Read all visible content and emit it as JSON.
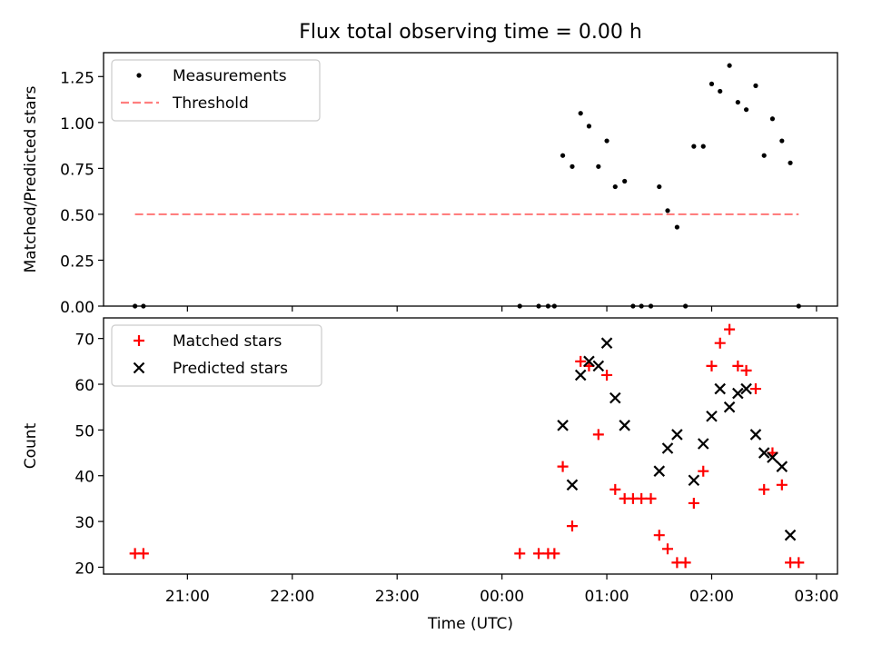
{
  "title": "Flux total observing time = 0.00 h",
  "colors": {
    "measurement": "#000000",
    "threshold": "#ff7f7f",
    "matched": "#ff0000",
    "predicted": "#000000"
  },
  "chart_data": [
    {
      "type": "scatter",
      "panel": "top",
      "ylabel": "Matched/Predicted stars",
      "xlim": [
        20.2,
        27.2
      ],
      "ylim": [
        0,
        1.38
      ],
      "xticks": [
        21,
        22,
        23,
        24,
        25,
        26,
        27
      ],
      "yticks": [
        0,
        0.25,
        0.5,
        0.75,
        1.0,
        1.25
      ],
      "ytick_labels": [
        "0.00",
        "0.25",
        "0.50",
        "0.75",
        "1.00",
        "1.25"
      ],
      "legend": {
        "position": "top-left",
        "entries": [
          "Measurements",
          "Threshold"
        ]
      },
      "series": [
        {
          "name": "Measurements",
          "marker": "dot",
          "x": [
            20.5,
            20.58,
            24.17,
            24.35,
            24.44,
            24.5,
            24.58,
            24.67,
            24.75,
            24.83,
            24.92,
            25.0,
            25.08,
            25.17,
            25.25,
            25.33,
            25.42,
            25.5,
            25.58,
            25.67,
            25.75,
            25.83,
            25.92,
            26.0,
            26.08,
            26.17,
            26.25,
            26.33,
            26.42,
            26.5,
            26.58,
            26.67,
            26.75,
            26.83
          ],
          "y": [
            0,
            0,
            0,
            0,
            0,
            0,
            0.82,
            0.76,
            1.05,
            0.98,
            0.76,
            0.9,
            0.65,
            0.68,
            0,
            0,
            0,
            0.65,
            0.52,
            0.43,
            0,
            0.87,
            0.87,
            1.21,
            1.17,
            1.31,
            1.11,
            1.07,
            1.2,
            0.82,
            1.02,
            0.9,
            0.78,
            0
          ]
        },
        {
          "name": "Threshold",
          "style": "dashed",
          "x": [
            20.5,
            26.83
          ],
          "y": [
            0.5,
            0.5
          ]
        }
      ]
    },
    {
      "type": "scatter",
      "panel": "bottom",
      "xlabel": "Time (UTC)",
      "ylabel": "Count",
      "xlim": [
        20.2,
        27.2
      ],
      "ylim": [
        18.5,
        74.5
      ],
      "xticks": [
        21,
        22,
        23,
        24,
        25,
        26,
        27
      ],
      "xtick_labels": [
        "21:00",
        "22:00",
        "23:00",
        "00:00",
        "01:00",
        "02:00",
        "03:00"
      ],
      "yticks": [
        20,
        30,
        40,
        50,
        60,
        70
      ],
      "ytick_labels": [
        "20",
        "30",
        "40",
        "50",
        "60",
        "70"
      ],
      "legend": {
        "position": "top-left",
        "entries": [
          "Matched stars",
          "Predicted stars"
        ]
      },
      "series": [
        {
          "name": "Matched stars",
          "marker": "plus",
          "x": [
            20.5,
            20.58,
            24.17,
            24.35,
            24.44,
            24.5,
            24.58,
            24.67,
            24.75,
            24.83,
            24.92,
            25.0,
            25.08,
            25.17,
            25.25,
            25.33,
            25.42,
            25.5,
            25.58,
            25.67,
            25.75,
            25.83,
            25.92,
            26.0,
            26.08,
            26.17,
            26.25,
            26.33,
            26.42,
            26.5,
            26.58,
            26.67,
            26.75,
            26.83
          ],
          "y": [
            23,
            23,
            23,
            23,
            23,
            23,
            42,
            29,
            65,
            64,
            49,
            62,
            37,
            35,
            35,
            35,
            35,
            27,
            24,
            21,
            21,
            34,
            41,
            64,
            69,
            72,
            64,
            63,
            59,
            37,
            45,
            38,
            21,
            21
          ]
        },
        {
          "name": "Predicted stars",
          "marker": "x",
          "x": [
            24.58,
            24.67,
            24.75,
            24.83,
            24.92,
            25.0,
            25.08,
            25.17,
            25.5,
            25.58,
            25.67,
            25.83,
            25.92,
            26.0,
            26.08,
            26.17,
            26.25,
            26.33,
            26.42,
            26.5,
            26.58,
            26.67,
            26.75
          ],
          "y": [
            51,
            38,
            62,
            65,
            64,
            69,
            57,
            51,
            41,
            46,
            49,
            39,
            47,
            53,
            59,
            55,
            58,
            59,
            49,
            45,
            44,
            42,
            27
          ]
        }
      ]
    }
  ]
}
